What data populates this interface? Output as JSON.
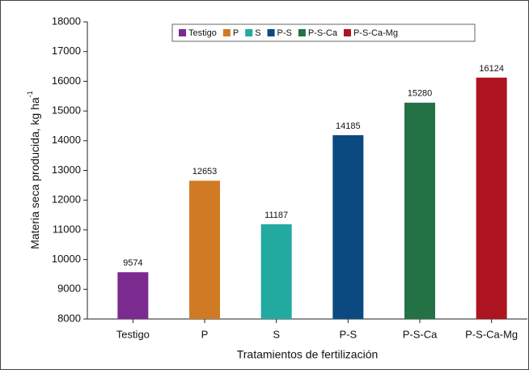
{
  "chart_data": {
    "type": "bar",
    "categories": [
      "Testigo",
      "P",
      "S",
      "P-S",
      "P-S-Ca",
      "P-S-Ca-Mg"
    ],
    "values": [
      9574,
      12653,
      11187,
      14185,
      15280,
      16124
    ],
    "colors": [
      "#7b2a90",
      "#d07a25",
      "#22aaa0",
      "#0b4a80",
      "#237245",
      "#ae1420"
    ],
    "xlabel": "Tratamientos de fertilización",
    "ylabel": "Materia seca producida, kg ha",
    "ylabel_superscript": "-1",
    "ylim": [
      8000,
      18000
    ],
    "yticks": [
      8000,
      9000,
      10000,
      11000,
      12000,
      13000,
      14000,
      15000,
      16000,
      17000,
      18000
    ],
    "legend": "top"
  }
}
